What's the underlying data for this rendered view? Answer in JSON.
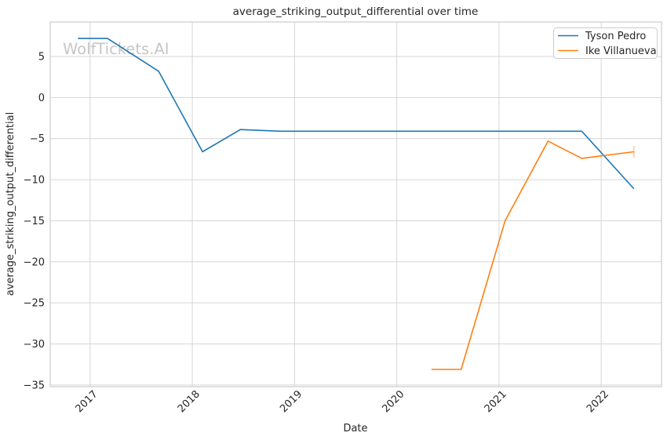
{
  "figure": {
    "watermark": "WolfTickets.AI"
  },
  "chart_data": {
    "type": "line",
    "title": "average_striking_output_differential over time",
    "xlabel": "Date",
    "ylabel": "average_striking_output_differential",
    "x_unit": "decimal_year",
    "xlim": [
      2016.61,
      2022.59
    ],
    "ylim": [
      -35.2,
      9.2
    ],
    "xticks": [
      2017,
      2018,
      2019,
      2020,
      2021,
      2022
    ],
    "yticks": [
      5,
      0,
      -5,
      -10,
      -15,
      -20,
      -25,
      -30,
      -35
    ],
    "grid": true,
    "legend_position": "upper right",
    "series": [
      {
        "name": "Tyson Pedro",
        "color": "#1f77b4",
        "x": [
          2016.88,
          2017.17,
          2017.67,
          2018.1,
          2018.47,
          2018.86,
          2021.81,
          2022.32
        ],
        "y": [
          7.2,
          7.2,
          3.2,
          -6.6,
          -3.9,
          -4.1,
          -4.1,
          -11.1
        ]
      },
      {
        "name": "Ike Villanueva",
        "color": "#ff7f0e",
        "x": [
          2020.34,
          2020.63,
          2021.06,
          2021.48,
          2021.81,
          2022.32
        ],
        "y": [
          -33.1,
          -33.1,
          -15.0,
          -5.3,
          -7.4,
          -6.6
        ],
        "end_marker": "vertical-tick"
      }
    ]
  }
}
